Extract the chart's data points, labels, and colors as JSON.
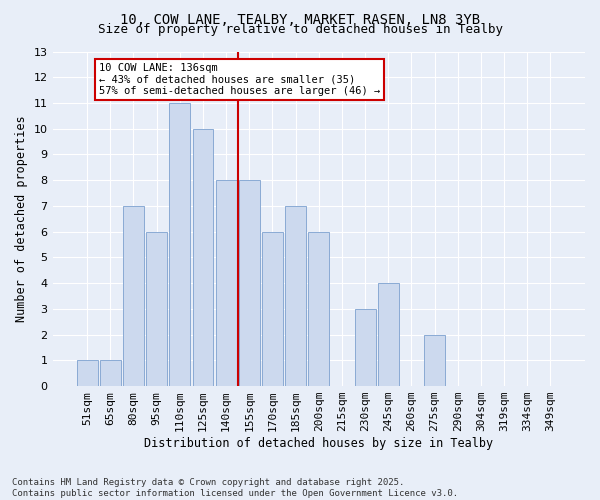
{
  "title1": "10, COW LANE, TEALBY, MARKET RASEN, LN8 3YB",
  "title2": "Size of property relative to detached houses in Tealby",
  "xlabel": "Distribution of detached houses by size in Tealby",
  "ylabel": "Number of detached properties",
  "categories": [
    "51sqm",
    "65sqm",
    "80sqm",
    "95sqm",
    "110sqm",
    "125sqm",
    "140sqm",
    "155sqm",
    "170sqm",
    "185sqm",
    "200sqm",
    "215sqm",
    "230sqm",
    "245sqm",
    "260sqm",
    "275sqm",
    "290sqm",
    "304sqm",
    "319sqm",
    "334sqm",
    "349sqm"
  ],
  "values": [
    1,
    1,
    7,
    6,
    11,
    10,
    8,
    8,
    6,
    7,
    6,
    0,
    3,
    4,
    0,
    2,
    0,
    0,
    0,
    0,
    0
  ],
  "bar_color": "#ccd9ee",
  "bar_edge_color": "#8aaad4",
  "vline_x_idx": 6,
  "vline_color": "#cc0000",
  "annotation_text": "10 COW LANE: 136sqm\n← 43% of detached houses are smaller (35)\n57% of semi-detached houses are larger (46) →",
  "annotation_box_facecolor": "#ffffff",
  "annotation_box_edgecolor": "#cc0000",
  "ylim": [
    0,
    13
  ],
  "yticks": [
    0,
    1,
    2,
    3,
    4,
    5,
    6,
    7,
    8,
    9,
    10,
    11,
    12,
    13
  ],
  "footer": "Contains HM Land Registry data © Crown copyright and database right 2025.\nContains public sector information licensed under the Open Government Licence v3.0.",
  "bg_color": "#e8eef8",
  "grid_color": "#ffffff",
  "title_fontsize": 10,
  "subtitle_fontsize": 9,
  "tick_fontsize": 8,
  "axis_label_fontsize": 8.5,
  "footer_fontsize": 6.5
}
